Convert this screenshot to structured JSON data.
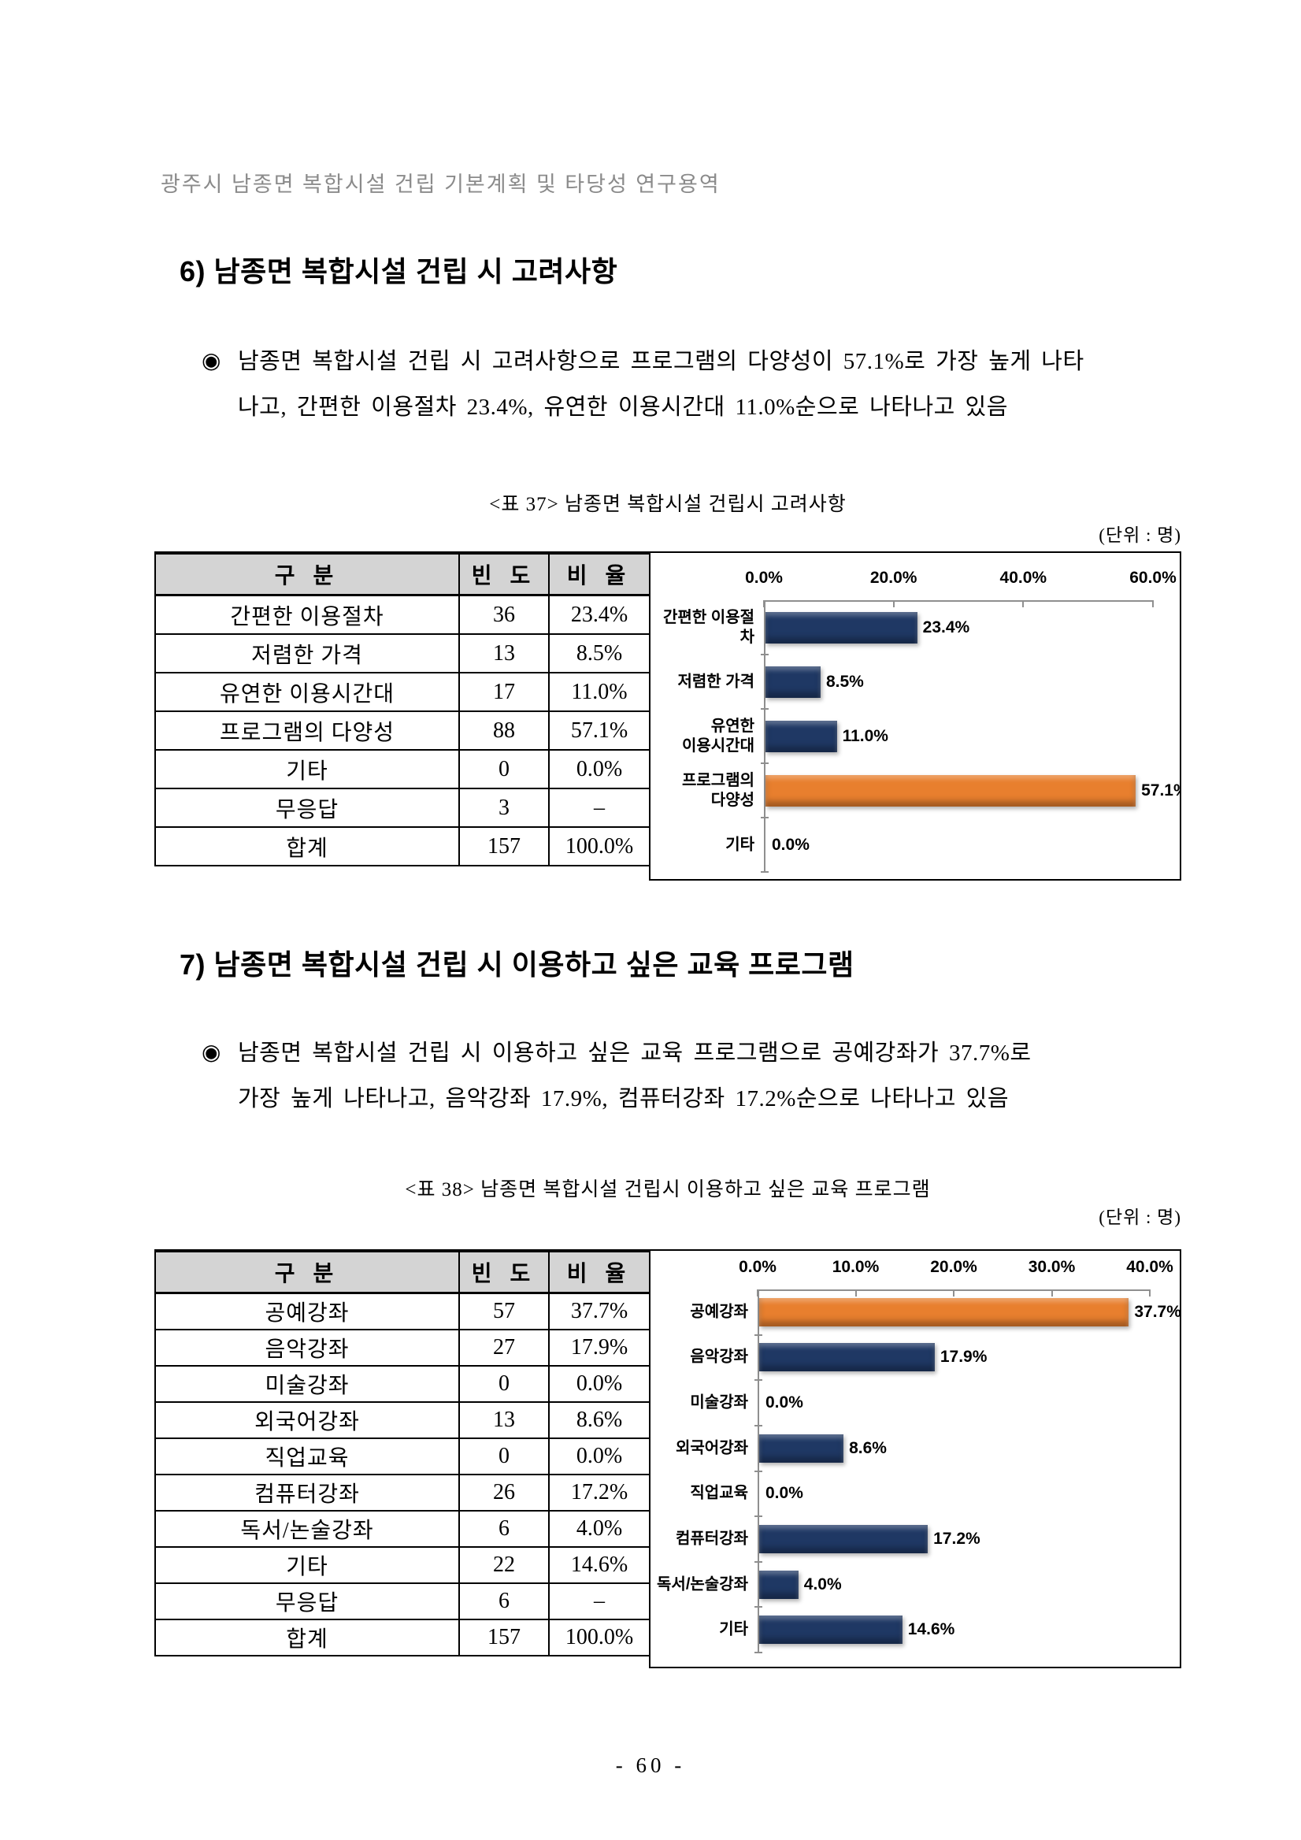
{
  "document": {
    "running_header": "광주시 남종면 복합시설 건립 기본계획 및 타당성 연구용역",
    "page_number": "- 60 -"
  },
  "section6": {
    "heading": "6) 남종면 복합시설 건립 시 고려사항",
    "bullet_marker": "◉",
    "bullet_line1": "남종면 복합시설 건립 시 고려사항으로 프로그램의 다양성이 57.1%로 가장 높게 나타",
    "bullet_line2": "나고, 간편한 이용절차 23.4%, 유연한 이용시간대 11.0%순으로 나타나고 있음",
    "table_caption": "<표 37> 남종면 복합시설 건립시 고려사항",
    "unit_label": "(단위 : 명)",
    "table": {
      "headers": [
        "구 분",
        "빈 도",
        "비 율"
      ],
      "rows": [
        [
          "간편한 이용절차",
          "36",
          "23.4%"
        ],
        [
          "저렴한 가격",
          "13",
          "8.5%"
        ],
        [
          "유연한 이용시간대",
          "17",
          "11.0%"
        ],
        [
          "프로그램의 다양성",
          "88",
          "57.1%"
        ],
        [
          "기타",
          "0",
          "0.0%"
        ],
        [
          "무응답",
          "3",
          "–"
        ],
        [
          "합계",
          "157",
          "100.0%"
        ]
      ]
    }
  },
  "section7": {
    "heading": "7) 남종면 복합시설 건립 시 이용하고 싶은 교육 프로그램",
    "bullet_marker": "◉",
    "bullet_line1": "남종면 복합시설 건립 시 이용하고 싶은 교육 프로그램으로 공예강좌가 37.7%로",
    "bullet_line2": "가장 높게 나타나고, 음악강좌 17.9%, 컴퓨터강좌 17.2%순으로 나타나고 있음",
    "table_caption": "<표 38> 남종면 복합시설 건립시 이용하고 싶은 교육 프로그램",
    "unit_label": "(단위 : 명)",
    "table": {
      "headers": [
        "구 분",
        "빈 도",
        "비 율"
      ],
      "rows": [
        [
          "공예강좌",
          "57",
          "37.7%"
        ],
        [
          "음악강좌",
          "27",
          "17.9%"
        ],
        [
          "미술강좌",
          "0",
          "0.0%"
        ],
        [
          "외국어강좌",
          "13",
          "8.6%"
        ],
        [
          "직업교육",
          "0",
          "0.0%"
        ],
        [
          "컴퓨터강좌",
          "26",
          "17.2%"
        ],
        [
          "독서/논술강좌",
          "6",
          "4.0%"
        ],
        [
          "기타",
          "22",
          "14.6%"
        ],
        [
          "무응답",
          "6",
          "–"
        ],
        [
          "합계",
          "157",
          "100.0%"
        ]
      ]
    }
  },
  "chart_data": [
    {
      "type": "bar",
      "orientation": "horizontal",
      "title": "남종면 복합시설 건립시 고려사항",
      "categories": [
        "간편한 이용절차",
        "저렴한 가격",
        "유연한 이용시간대",
        "프로그램의 다양성",
        "기타"
      ],
      "categories_display": [
        "간편한 이용절차",
        "저렴한 가격",
        "유연한\n이용시간대",
        "프로그램의\n다양성",
        "기타"
      ],
      "values": [
        23.4,
        8.5,
        11.0,
        57.1,
        0.0
      ],
      "value_labels": [
        "23.4%",
        "8.5%",
        "11.0%",
        "57.1%",
        "0.0%"
      ],
      "xlim": [
        0,
        60
      ],
      "tick_labels": [
        "0.0%",
        "20.0%",
        "40.0%",
        "60.0%"
      ],
      "tick_values": [
        0,
        20,
        40,
        60
      ],
      "axis_position": "top",
      "grid": false,
      "legend": false,
      "bar_color": "#1f3864",
      "highlight_color": "#e87f2e",
      "highlight_index": 3
    },
    {
      "type": "bar",
      "orientation": "horizontal",
      "title": "남종면 복합시설 건립시 이용하고 싶은 교육 프로그램",
      "categories": [
        "공예강좌",
        "음악강좌",
        "미술강좌",
        "외국어강좌",
        "직업교육",
        "컴퓨터강좌",
        "독서/논술강좌",
        "기타"
      ],
      "categories_display": [
        "공예강좌",
        "음악강좌",
        "미술강좌",
        "외국어강좌",
        "직업교육",
        "컴퓨터강좌",
        "독서/논술강좌",
        "기타"
      ],
      "values": [
        37.7,
        17.9,
        0.0,
        8.6,
        0.0,
        17.2,
        4.0,
        14.6
      ],
      "value_labels": [
        "37.7%",
        "17.9%",
        "0.0%",
        "8.6%",
        "0.0%",
        "17.2%",
        "4.0%",
        "14.6%"
      ],
      "xlim": [
        0,
        40
      ],
      "tick_labels": [
        "0.0%",
        "10.0%",
        "20.0%",
        "30.0%",
        "40.0%"
      ],
      "tick_values": [
        0,
        10,
        20,
        30,
        40
      ],
      "axis_position": "top",
      "grid": false,
      "legend": false,
      "bar_color": "#1f3864",
      "highlight_color": "#e87f2e",
      "highlight_index": 0
    }
  ]
}
